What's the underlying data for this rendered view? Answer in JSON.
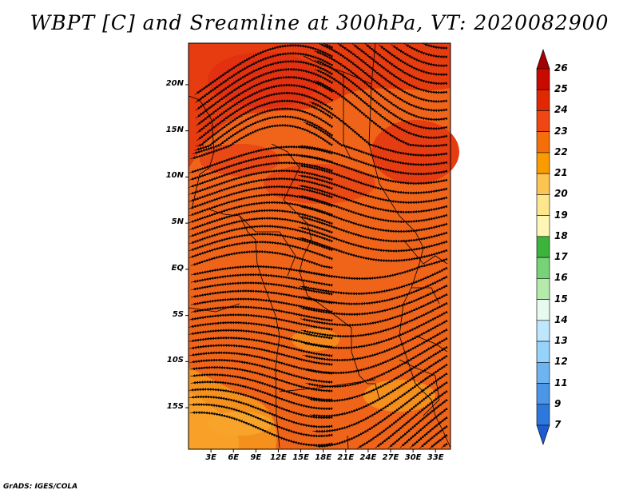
{
  "title": "WBPT [C] and Sreamline at 300hPa, VT: 2020082900",
  "credit": "GrADS: IGES/COLA",
  "map": {
    "lat_ticks": [
      "20N",
      "15N",
      "10N",
      "5N",
      "EQ",
      "5S",
      "10S",
      "15S"
    ],
    "lat_values": [
      20,
      15,
      10,
      5,
      0,
      -5,
      -10,
      -15
    ],
    "lon_ticks": [
      "3E",
      "6E",
      "9E",
      "12E",
      "15E",
      "18E",
      "21E",
      "24E",
      "27E",
      "30E",
      "33E"
    ],
    "lon_values": [
      3,
      6,
      9,
      12,
      15,
      18,
      21,
      24,
      27,
      30,
      33
    ],
    "lon_range": [
      0,
      35
    ],
    "lat_range": [
      -19.5,
      24.5
    ]
  },
  "colorbar": {
    "labels": [
      "26",
      "25",
      "24",
      "23",
      "22",
      "21",
      "20",
      "19",
      "18",
      "17",
      "16",
      "15",
      "14",
      "13",
      "12",
      "11",
      "9",
      "7"
    ],
    "colors": [
      "#a50000",
      "#c80a00",
      "#e12800",
      "#f04614",
      "#f56e0a",
      "#fa9b00",
      "#fcc450",
      "#fde68c",
      "#fff5b4",
      "#3cb43c",
      "#78d278",
      "#b4ebaa",
      "#e6faf0",
      "#bee6ff",
      "#96d2fa",
      "#6eb4f0",
      "#4b96e6",
      "#2d78dc",
      "#1e5ad2"
    ]
  }
}
